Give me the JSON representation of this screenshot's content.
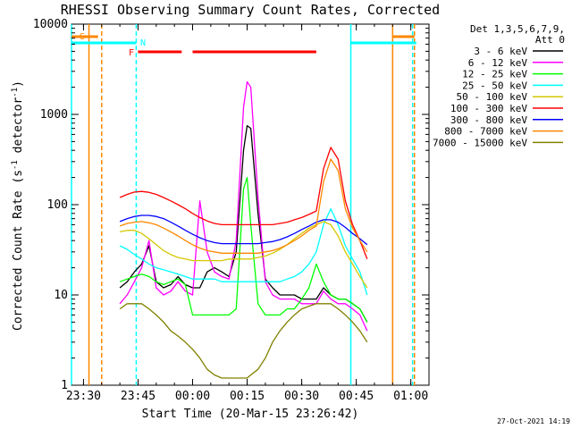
{
  "chart_data": {
    "type": "line",
    "title": "RHESSI Observing Summary Count Rates, Corrected",
    "xlabel": "Start Time (20-Mar-15 23:26:42)",
    "ylabel": "Corrected Count Rate (s⁻¹ detector⁻¹)",
    "ylabel_parts": [
      "Corrected Count Rate (s",
      "-1",
      " detector",
      "-1",
      ")"
    ],
    "xlim": [
      "23:26:42",
      "01:05:00"
    ],
    "ylim": [
      1,
      10000
    ],
    "yscale": "log",
    "x_ticks": [
      "23:30",
      "23:45",
      "00:00",
      "00:15",
      "00:30",
      "00:45",
      "01:00"
    ],
    "y_ticks": [
      "1",
      "10",
      "100",
      "1000",
      "10000"
    ],
    "legend": {
      "header": [
        "Det 1,3,5,6,7,9,",
        "Att 0"
      ],
      "placement": "right"
    },
    "series": [
      {
        "name": "3 - 6 keV",
        "color": "#000000",
        "x": [
          "23:40",
          "23:42",
          "23:44",
          "23:46",
          "23:48",
          "23:50",
          "23:52",
          "23:54",
          "23:56",
          "23:58",
          "00:00",
          "00:02",
          "00:04",
          "00:06",
          "00:08",
          "00:10",
          "00:12",
          "00:14",
          "00:15",
          "00:16",
          "00:18",
          "00:20",
          "00:22",
          "00:24",
          "00:26",
          "00:28",
          "00:30",
          "00:32",
          "00:34",
          "00:36",
          "00:38",
          "00:40",
          "00:42",
          "00:44",
          "00:46",
          "00:48"
        ],
        "y": [
          12,
          14,
          18,
          22,
          35,
          14,
          12,
          13,
          16,
          13,
          12,
          12,
          18,
          20,
          18,
          16,
          30,
          400,
          750,
          700,
          80,
          15,
          12,
          10,
          10,
          10,
          9,
          9,
          9,
          12,
          10,
          9,
          9,
          8,
          7,
          5
        ]
      },
      {
        "name": "6 - 12 keV",
        "color": "#ff00ff",
        "x": [
          "23:40",
          "23:42",
          "23:44",
          "23:46",
          "23:48",
          "23:50",
          "23:52",
          "23:54",
          "23:56",
          "23:58",
          "00:00",
          "00:02",
          "00:04",
          "00:06",
          "00:08",
          "00:10",
          "00:12",
          "00:14",
          "00:15",
          "00:16",
          "00:18",
          "00:20",
          "00:22",
          "00:24",
          "00:26",
          "00:28",
          "00:30",
          "00:32",
          "00:34",
          "00:36",
          "00:38",
          "00:40",
          "00:42",
          "00:44",
          "00:46",
          "00:48"
        ],
        "y": [
          8,
          10,
          14,
          20,
          40,
          12,
          10,
          11,
          14,
          11,
          10,
          110,
          30,
          18,
          16,
          15,
          40,
          1200,
          2300,
          2000,
          120,
          14,
          10,
          9,
          9,
          9,
          8,
          8,
          8,
          11,
          9,
          8,
          8,
          7,
          6,
          4
        ]
      },
      {
        "name": "12 - 25 keV",
        "color": "#00ff00",
        "x": [
          "23:40",
          "23:42",
          "23:44",
          "23:46",
          "23:48",
          "23:50",
          "23:52",
          "23:54",
          "23:56",
          "23:58",
          "00:00",
          "00:02",
          "00:04",
          "00:06",
          "00:08",
          "00:10",
          "00:12",
          "00:14",
          "00:15",
          "00:16",
          "00:18",
          "00:20",
          "00:22",
          "00:24",
          "00:26",
          "00:28",
          "00:30",
          "00:32",
          "00:34",
          "00:36",
          "00:38",
          "00:40",
          "00:42",
          "00:44",
          "00:46",
          "00:48"
        ],
        "y": [
          14,
          15,
          16,
          17,
          16,
          14,
          13,
          14,
          15,
          13,
          6,
          6,
          6,
          6,
          6,
          6,
          7,
          150,
          200,
          60,
          8,
          6,
          6,
          6,
          7,
          7,
          9,
          12,
          22,
          14,
          10,
          9,
          9,
          8,
          7,
          5
        ]
      },
      {
        "name": "25 - 50 keV",
        "color": "#00ffff",
        "x": [
          "23:40",
          "23:42",
          "23:44",
          "23:46",
          "23:48",
          "23:50",
          "23:52",
          "23:54",
          "23:56",
          "23:58",
          "00:00",
          "00:02",
          "00:04",
          "00:06",
          "00:08",
          "00:10",
          "00:12",
          "00:14",
          "00:15",
          "00:16",
          "00:18",
          "00:20",
          "00:22",
          "00:24",
          "00:26",
          "00:28",
          "00:30",
          "00:32",
          "00:34",
          "00:36",
          "00:38",
          "00:40",
          "00:42",
          "00:44",
          "00:46",
          "00:48"
        ],
        "y": [
          35,
          32,
          28,
          25,
          22,
          20,
          19,
          18,
          17,
          16,
          15,
          15,
          15,
          15,
          14,
          14,
          14,
          14,
          14,
          14,
          14,
          14,
          14,
          14,
          15,
          16,
          18,
          22,
          30,
          60,
          90,
          60,
          35,
          25,
          18,
          10
        ]
      },
      {
        "name": "50 - 100 keV",
        "color": "#d4c800",
        "x": [
          "23:40",
          "23:42",
          "23:44",
          "23:46",
          "23:48",
          "23:50",
          "23:52",
          "23:54",
          "23:56",
          "23:58",
          "00:00",
          "00:02",
          "00:04",
          "00:06",
          "00:08",
          "00:10",
          "00:12",
          "00:14",
          "00:15",
          "00:16",
          "00:18",
          "00:20",
          "00:22",
          "00:24",
          "00:26",
          "00:28",
          "00:30",
          "00:32",
          "00:34",
          "00:36",
          "00:38",
          "00:40",
          "00:42",
          "00:44",
          "00:46",
          "00:48"
        ],
        "y": [
          50,
          52,
          52,
          48,
          42,
          36,
          31,
          28,
          26,
          25,
          24,
          24,
          24,
          24,
          24,
          25,
          25,
          25,
          25,
          25,
          26,
          27,
          29,
          32,
          36,
          42,
          48,
          55,
          60,
          65,
          60,
          45,
          30,
          22,
          16,
          12
        ]
      },
      {
        "name": "100 - 300 keV",
        "color": "#ff0000",
        "x": [
          "23:40",
          "23:42",
          "23:44",
          "23:46",
          "23:48",
          "23:50",
          "23:52",
          "23:54",
          "23:56",
          "23:58",
          "00:00",
          "00:02",
          "00:04",
          "00:06",
          "00:08",
          "00:10",
          "00:12",
          "00:14",
          "00:15",
          "00:16",
          "00:18",
          "00:20",
          "00:22",
          "00:24",
          "00:26",
          "00:28",
          "00:30",
          "00:32",
          "00:34",
          "00:36",
          "00:38",
          "00:40",
          "00:42",
          "00:44",
          "00:46",
          "00:48"
        ],
        "y": [
          120,
          130,
          138,
          140,
          137,
          130,
          120,
          110,
          100,
          90,
          80,
          72,
          66,
          62,
          60,
          60,
          60,
          60,
          60,
          60,
          60,
          60,
          60,
          62,
          64,
          68,
          72,
          78,
          85,
          250,
          430,
          320,
          110,
          60,
          40,
          25
        ]
      },
      {
        "name": "300 - 800 keV",
        "color": "#0000ff",
        "x": [
          "23:40",
          "23:42",
          "23:44",
          "23:46",
          "23:48",
          "23:50",
          "23:52",
          "23:54",
          "23:56",
          "23:58",
          "00:00",
          "00:02",
          "00:04",
          "00:06",
          "00:08",
          "00:10",
          "00:12",
          "00:14",
          "00:15",
          "00:16",
          "00:18",
          "00:20",
          "00:22",
          "00:24",
          "00:26",
          "00:28",
          "00:30",
          "00:32",
          "00:34",
          "00:36",
          "00:38",
          "00:40",
          "00:42",
          "00:44",
          "00:46",
          "00:48"
        ],
        "y": [
          65,
          70,
          74,
          76,
          76,
          74,
          70,
          64,
          58,
          52,
          47,
          43,
          40,
          38,
          37,
          37,
          37,
          37,
          37,
          37,
          37,
          38,
          39,
          41,
          44,
          48,
          53,
          58,
          64,
          68,
          68,
          64,
          56,
          48,
          42,
          36
        ]
      },
      {
        "name": "800 - 7000 keV",
        "color": "#ff8800",
        "x": [
          "23:40",
          "23:42",
          "23:44",
          "23:46",
          "23:48",
          "23:50",
          "23:52",
          "23:54",
          "23:56",
          "23:58",
          "00:00",
          "00:02",
          "00:04",
          "00:06",
          "00:08",
          "00:10",
          "00:12",
          "00:14",
          "00:15",
          "00:16",
          "00:18",
          "00:20",
          "00:22",
          "00:24",
          "00:26",
          "00:28",
          "00:30",
          "00:32",
          "00:34",
          "00:36",
          "00:38",
          "00:40",
          "00:42",
          "00:44",
          "00:46",
          "00:48"
        ],
        "y": [
          58,
          62,
          64,
          65,
          63,
          60,
          55,
          50,
          45,
          40,
          36,
          33,
          31,
          30,
          29,
          29,
          29,
          29,
          29,
          29,
          29,
          30,
          31,
          33,
          36,
          40,
          45,
          52,
          58,
          180,
          320,
          240,
          90,
          55,
          40,
          30
        ]
      },
      {
        "name": "7000 - 15000 keV",
        "color": "#808000",
        "x": [
          "23:40",
          "23:42",
          "23:44",
          "23:46",
          "23:48",
          "23:50",
          "23:52",
          "23:54",
          "23:56",
          "23:58",
          "00:00",
          "00:02",
          "00:04",
          "00:06",
          "00:08",
          "00:10",
          "00:12",
          "00:14",
          "00:15",
          "00:16",
          "00:18",
          "00:20",
          "00:22",
          "00:24",
          "00:26",
          "00:28",
          "00:30",
          "00:32",
          "00:34",
          "00:36",
          "00:38",
          "00:40",
          "00:42",
          "00:44",
          "00:46",
          "00:48"
        ],
        "y": [
          7,
          8,
          8,
          8,
          7,
          6,
          5,
          4,
          3.5,
          3,
          2.5,
          2,
          1.5,
          1.3,
          1.2,
          1.2,
          1.2,
          1.2,
          1.2,
          1.3,
          1.5,
          2,
          3,
          4,
          5,
          6,
          7,
          7.5,
          8,
          8,
          8,
          7,
          6,
          5,
          4,
          3
        ]
      }
    ],
    "annotations": {
      "markers": [
        {
          "label": "S",
          "color": "#ff8800"
        },
        {
          "label": "N",
          "color": "#00ffff"
        },
        {
          "label": "F",
          "color": "#ff0000"
        }
      ],
      "saa_intervals": [
        {
          "start": "23:26:42",
          "end": "23:34:00",
          "color": "#ff8800"
        },
        {
          "start": "00:55:00",
          "end": "01:01:00",
          "color": "#ff8800"
        }
      ],
      "night_intervals": [
        {
          "start": "23:26:42",
          "end": "23:44:30",
          "color": "#00ffff"
        },
        {
          "start": "00:43:30",
          "end": "01:01:30",
          "color": "#00ffff"
        }
      ],
      "flare_intervals": [
        {
          "start": "23:45:00",
          "end": "23:57:00",
          "color": "#ff0000"
        },
        {
          "start": "00:00:00",
          "end": "00:34:00",
          "color": "#ff0000"
        }
      ],
      "vertical_lines": [
        {
          "t": "23:26:42",
          "color": "#00ffff",
          "style": "solid"
        },
        {
          "t": "23:31:30",
          "color": "#ff8800",
          "style": "solid"
        },
        {
          "t": "23:35:00",
          "color": "#ff8800",
          "style": "dashed"
        },
        {
          "t": "23:44:30",
          "color": "#00ffff",
          "style": "dashed"
        },
        {
          "t": "00:43:30",
          "color": "#00ffff",
          "style": "solid"
        },
        {
          "t": "00:55:00",
          "color": "#ff8800",
          "style": "solid"
        },
        {
          "t": "01:00:30",
          "color": "#00ffff",
          "style": "dashed"
        },
        {
          "t": "01:01:00",
          "color": "#ff8800",
          "style": "dashed"
        }
      ]
    },
    "footer": "27-Oct-2021 14:19"
  }
}
